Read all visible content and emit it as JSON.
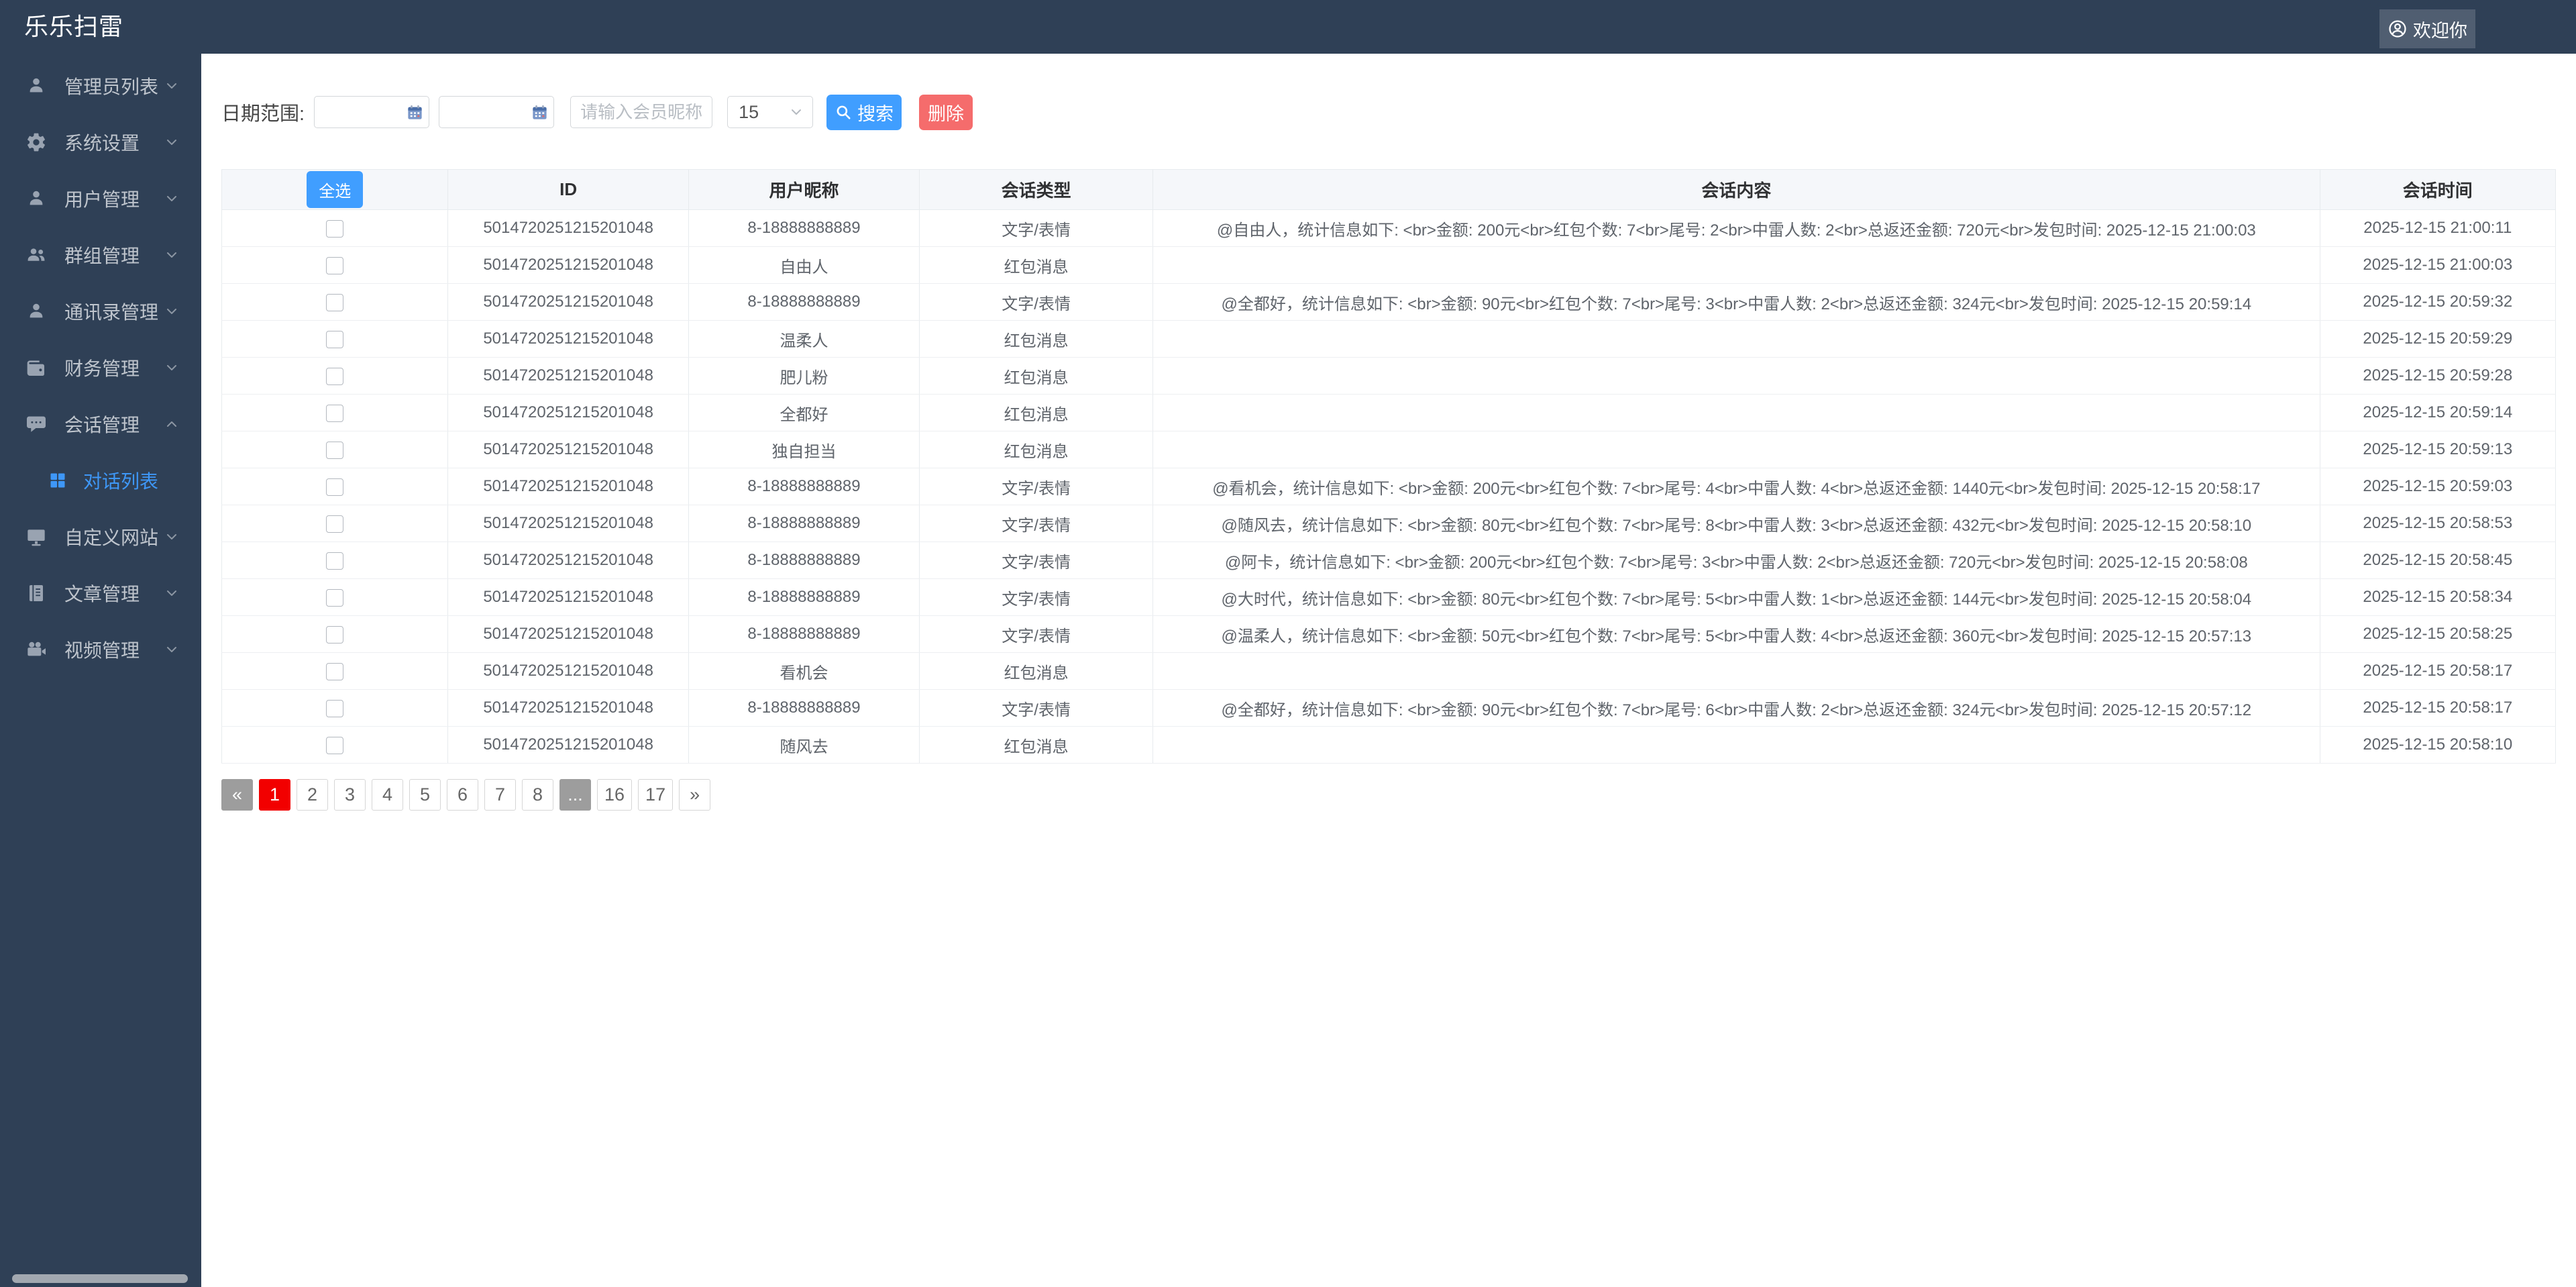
{
  "app": {
    "title": "乐乐扫雷"
  },
  "topbar": {
    "welcome": "欢迎你"
  },
  "colors": {
    "sidebar_bg": "#2f4056",
    "accent_blue": "#409eff",
    "danger_red": "#f56c6c",
    "active_link_blue": "#3e97f7",
    "pagination_active_red": "#f20000"
  },
  "sidebar": {
    "items": [
      {
        "key": "admin-list",
        "icon": "user-icon",
        "label": "管理员列表",
        "chevron": "down"
      },
      {
        "key": "system-settings",
        "icon": "gear-icon",
        "label": "系统设置",
        "chevron": "down"
      },
      {
        "key": "user-management",
        "icon": "user-icon",
        "label": "用户管理",
        "chevron": "down"
      },
      {
        "key": "group-management",
        "icon": "users-icon",
        "label": "群组管理",
        "chevron": "down"
      },
      {
        "key": "contacts-management",
        "icon": "user-icon",
        "label": "通讯录管理",
        "chevron": "down"
      },
      {
        "key": "finance-management",
        "icon": "wallet-icon",
        "label": "财务管理",
        "chevron": "down"
      },
      {
        "key": "session-management",
        "icon": "comment-icon",
        "label": "会话管理",
        "chevron": "up",
        "children": [
          {
            "key": "dialog-list",
            "icon": "grid-icon",
            "label": "对话列表",
            "active": true
          }
        ]
      },
      {
        "key": "custom-website",
        "icon": "monitor-icon",
        "label": "自定义网站",
        "chevron": "down"
      },
      {
        "key": "article-management",
        "icon": "book-icon",
        "label": "文章管理",
        "chevron": "down"
      },
      {
        "key": "video-management",
        "icon": "video-icon",
        "label": "视频管理",
        "chevron": "down"
      }
    ]
  },
  "filters": {
    "date_label": "日期范围:",
    "date_start_value": "",
    "date_end_value": "",
    "nickname_placeholder": "请输入会员昵称",
    "page_size": "15",
    "search_label": "搜索",
    "delete_label": "删除"
  },
  "table": {
    "select_all": "全选",
    "headers": [
      "ID",
      "用户昵称",
      "会话类型",
      "会话内容",
      "会话时间"
    ],
    "rows": [
      {
        "id": "5014720251215201048",
        "nickname": "8-18888888889",
        "type": "文字/表情",
        "content": "@自由人，统计信息如下: <br>金额: 200元<br>红包个数: 7<br>尾号: 2<br>中雷人数: 2<br>总返还金额: 720元<br>发包时间: 2025-12-15 21:00:03",
        "time": "2025-12-15 21:00:11"
      },
      {
        "id": "5014720251215201048",
        "nickname": "自由人",
        "type": "红包消息",
        "content": "",
        "time": "2025-12-15 21:00:03"
      },
      {
        "id": "5014720251215201048",
        "nickname": "8-18888888889",
        "type": "文字/表情",
        "content": "@全都好，统计信息如下: <br>金额: 90元<br>红包个数: 7<br>尾号: 3<br>中雷人数: 2<br>总返还金额: 324元<br>发包时间: 2025-12-15 20:59:14",
        "time": "2025-12-15 20:59:32"
      },
      {
        "id": "5014720251215201048",
        "nickname": "温柔人",
        "type": "红包消息",
        "content": "",
        "time": "2025-12-15 20:59:29"
      },
      {
        "id": "5014720251215201048",
        "nickname": "肥儿粉",
        "type": "红包消息",
        "content": "",
        "time": "2025-12-15 20:59:28"
      },
      {
        "id": "5014720251215201048",
        "nickname": "全都好",
        "type": "红包消息",
        "content": "",
        "time": "2025-12-15 20:59:14"
      },
      {
        "id": "5014720251215201048",
        "nickname": "独自担当",
        "type": "红包消息",
        "content": "",
        "time": "2025-12-15 20:59:13"
      },
      {
        "id": "5014720251215201048",
        "nickname": "8-18888888889",
        "type": "文字/表情",
        "content": "@看机会，统计信息如下: <br>金额: 200元<br>红包个数: 7<br>尾号: 4<br>中雷人数: 4<br>总返还金额: 1440元<br>发包时间: 2025-12-15 20:58:17",
        "time": "2025-12-15 20:59:03"
      },
      {
        "id": "5014720251215201048",
        "nickname": "8-18888888889",
        "type": "文字/表情",
        "content": "@随风去，统计信息如下: <br>金额: 80元<br>红包个数: 7<br>尾号: 8<br>中雷人数: 3<br>总返还金额: 432元<br>发包时间: 2025-12-15 20:58:10",
        "time": "2025-12-15 20:58:53"
      },
      {
        "id": "5014720251215201048",
        "nickname": "8-18888888889",
        "type": "文字/表情",
        "content": "@阿卡，统计信息如下: <br>金额: 200元<br>红包个数: 7<br>尾号: 3<br>中雷人数: 2<br>总返还金额: 720元<br>发包时间: 2025-12-15 20:58:08",
        "time": "2025-12-15 20:58:45"
      },
      {
        "id": "5014720251215201048",
        "nickname": "8-18888888889",
        "type": "文字/表情",
        "content": "@大时代，统计信息如下: <br>金额: 80元<br>红包个数: 7<br>尾号: 5<br>中雷人数: 1<br>总返还金额: 144元<br>发包时间: 2025-12-15 20:58:04",
        "time": "2025-12-15 20:58:34"
      },
      {
        "id": "5014720251215201048",
        "nickname": "8-18888888889",
        "type": "文字/表情",
        "content": "@温柔人，统计信息如下: <br>金额: 50元<br>红包个数: 7<br>尾号: 5<br>中雷人数: 4<br>总返还金额: 360元<br>发包时间: 2025-12-15 20:57:13",
        "time": "2025-12-15 20:58:25"
      },
      {
        "id": "5014720251215201048",
        "nickname": "看机会",
        "type": "红包消息",
        "content": "",
        "time": "2025-12-15 20:58:17"
      },
      {
        "id": "5014720251215201048",
        "nickname": "8-18888888889",
        "type": "文字/表情",
        "content": "@全都好，统计信息如下: <br>金额: 90元<br>红包个数: 7<br>尾号: 6<br>中雷人数: 2<br>总返还金额: 324元<br>发包时间: 2025-12-15 20:57:12",
        "time": "2025-12-15 20:58:17"
      },
      {
        "id": "5014720251215201048",
        "nickname": "随风去",
        "type": "红包消息",
        "content": "",
        "time": "2025-12-15 20:58:10"
      }
    ]
  },
  "pagination": {
    "items": [
      {
        "label": "«",
        "kind": "prev"
      },
      {
        "label": "1",
        "kind": "active"
      },
      {
        "label": "2",
        "kind": "page"
      },
      {
        "label": "3",
        "kind": "page"
      },
      {
        "label": "4",
        "kind": "page"
      },
      {
        "label": "5",
        "kind": "page"
      },
      {
        "label": "6",
        "kind": "page"
      },
      {
        "label": "7",
        "kind": "page"
      },
      {
        "label": "8",
        "kind": "page"
      },
      {
        "label": "...",
        "kind": "ellipsis"
      },
      {
        "label": "16",
        "kind": "page"
      },
      {
        "label": "17",
        "kind": "page"
      },
      {
        "label": "»",
        "kind": "next"
      }
    ]
  }
}
